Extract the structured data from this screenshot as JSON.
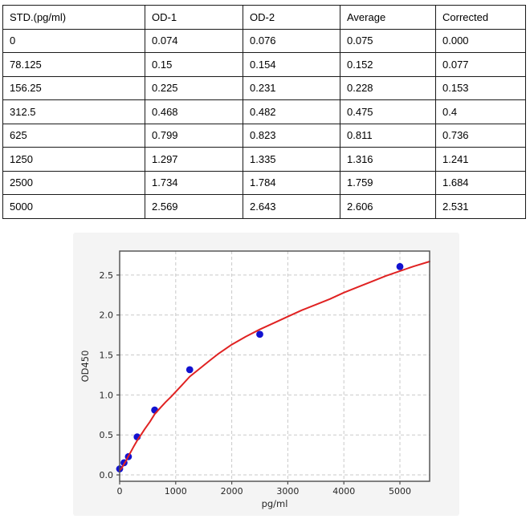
{
  "table": {
    "columns": [
      "STD.(pg/ml)",
      "OD-1",
      "OD-2",
      "Average",
      "Corrected"
    ],
    "rows": [
      [
        "0",
        "0.074",
        "0.076",
        "0.075",
        "0.000"
      ],
      [
        "78.125",
        "0.15",
        "0.154",
        "0.152",
        "0.077"
      ],
      [
        "156.25",
        "0.225",
        "0.231",
        "0.228",
        "0.153"
      ],
      [
        "312.5",
        "0.468",
        "0.482",
        "0.475",
        "0.4"
      ],
      [
        "625",
        "0.799",
        "0.823",
        "0.811",
        "0.736"
      ],
      [
        "1250",
        "1.297",
        "1.335",
        "1.316",
        "1.241"
      ],
      [
        "2500",
        "1.734",
        "1.784",
        "1.759",
        "1.684"
      ],
      [
        "5000",
        "2.569",
        "2.643",
        "2.606",
        "2.531"
      ]
    ]
  },
  "chart_data": {
    "type": "scatter",
    "title": "",
    "xlabel": "pg/ml",
    "ylabel": "OD450",
    "xlim": [
      0,
      5530
    ],
    "ylim": [
      -0.08,
      2.8
    ],
    "x_ticks": [
      0,
      1000,
      2000,
      3000,
      4000,
      5000
    ],
    "y_ticks": [
      0.0,
      0.5,
      1.0,
      1.5,
      2.0,
      2.5
    ],
    "grid": true,
    "legend": "none",
    "series": [
      {
        "name": "standard-points",
        "kind": "scatter",
        "color": "#1212d0",
        "x": [
          0,
          78.125,
          156.25,
          312.5,
          625,
          1250,
          2500,
          5000
        ],
        "y": [
          0.075,
          0.152,
          0.228,
          0.475,
          0.811,
          1.316,
          1.759,
          2.606
        ]
      },
      {
        "name": "fitted-curve",
        "kind": "line",
        "color": "#e02222",
        "x": [
          0,
          40,
          78,
          120,
          156,
          200,
          250,
          312,
          380,
          450,
          540,
          625,
          720,
          820,
          920,
          1000,
          1120,
          1250,
          1375,
          1500,
          1625,
          1750,
          1875,
          2000,
          2250,
          2500,
          2750,
          3000,
          3250,
          3500,
          3750,
          4000,
          4250,
          4500,
          4750,
          5000,
          5250,
          5530
        ],
        "y": [
          0.055,
          0.09,
          0.135,
          0.185,
          0.235,
          0.29,
          0.355,
          0.43,
          0.5,
          0.575,
          0.665,
          0.76,
          0.835,
          0.91,
          0.98,
          1.04,
          1.13,
          1.23,
          1.3,
          1.37,
          1.44,
          1.51,
          1.57,
          1.63,
          1.73,
          1.82,
          1.9,
          1.98,
          2.06,
          2.13,
          2.2,
          2.28,
          2.35,
          2.42,
          2.49,
          2.55,
          2.61,
          2.67
        ]
      }
    ],
    "colors": {
      "card_bg": "#f4f4f4",
      "plot_bg": "#ffffff",
      "grid": "#c9c9c9",
      "frame": "#4d4d4d",
      "tick_text": "#262626",
      "points": "#1212d0",
      "curve": "#e02222"
    }
  }
}
